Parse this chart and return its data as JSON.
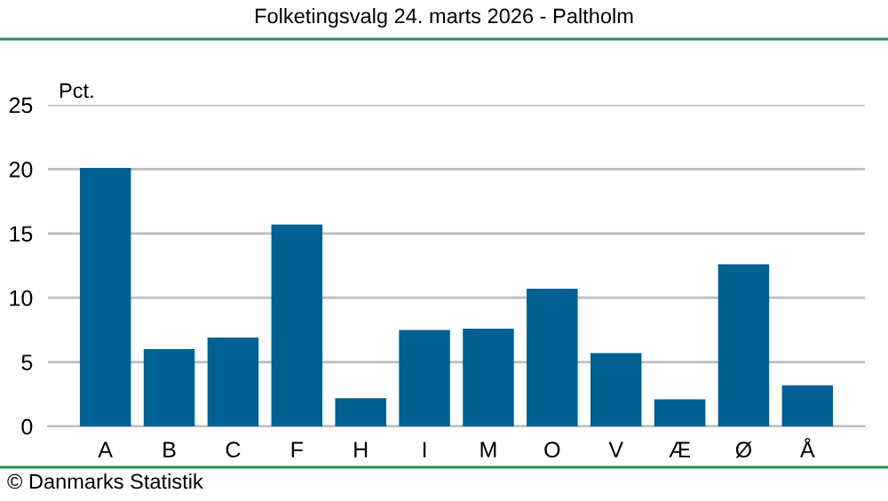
{
  "chart_data": {
    "type": "bar",
    "title": "Folketingsvalg 24. marts 2026 - Paltholm",
    "ylabel": "Pct.",
    "categories": [
      "A",
      "B",
      "C",
      "F",
      "H",
      "I",
      "M",
      "O",
      "V",
      "Æ",
      "Ø",
      "Å"
    ],
    "values": [
      20.1,
      6.0,
      6.9,
      15.7,
      2.2,
      7.5,
      7.6,
      10.7,
      5.7,
      2.1,
      12.6,
      3.2
    ],
    "color": "#006294",
    "ylim": [
      0,
      25
    ],
    "yticks": [
      0,
      5,
      10,
      15,
      20,
      25
    ],
    "grid": "y",
    "legend": false,
    "annotations": [
      "© Danmarks Statistik"
    ]
  }
}
